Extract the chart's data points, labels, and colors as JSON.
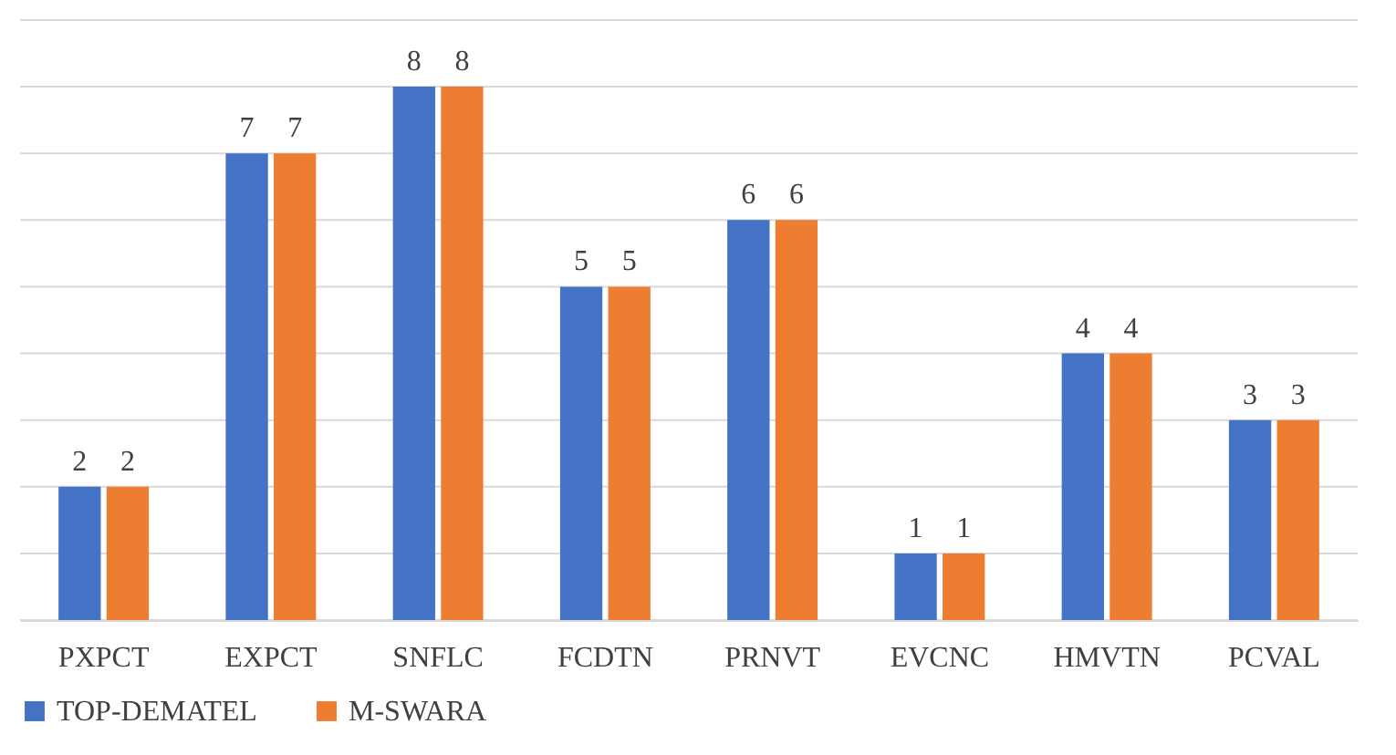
{
  "chart_data": {
    "type": "bar",
    "categories": [
      "PXPCT",
      "EXPCT",
      "SNFLC",
      "FCDTN",
      "PRNVT",
      "EVCNC",
      "HMVTN",
      "PCVAL"
    ],
    "series": [
      {
        "name": "TOP-DEMATEL",
        "color": "#4472c4",
        "values": [
          2,
          7,
          8,
          5,
          6,
          1,
          4,
          3
        ]
      },
      {
        "name": "M-SWARA",
        "color": "#ed7d31",
        "values": [
          2,
          7,
          8,
          5,
          6,
          1,
          4,
          3
        ]
      }
    ],
    "ylim": [
      0,
      9
    ],
    "yticks": [
      {
        "value": 0,
        "label": null
      },
      {
        "value": 1,
        "label": null
      },
      {
        "value": 2,
        "label": null
      },
      {
        "value": 3,
        "label": null
      },
      {
        "value": 4,
        "label": null
      },
      {
        "value": 5,
        "label": null
      },
      {
        "value": 6,
        "label": null
      },
      {
        "value": 7,
        "label": null
      },
      {
        "value": 8,
        "label": null
      },
      {
        "value": 9,
        "label": null
      }
    ],
    "tick_labels": "x",
    "grid": "y",
    "legend": "bottom",
    "data_labels": true
  }
}
